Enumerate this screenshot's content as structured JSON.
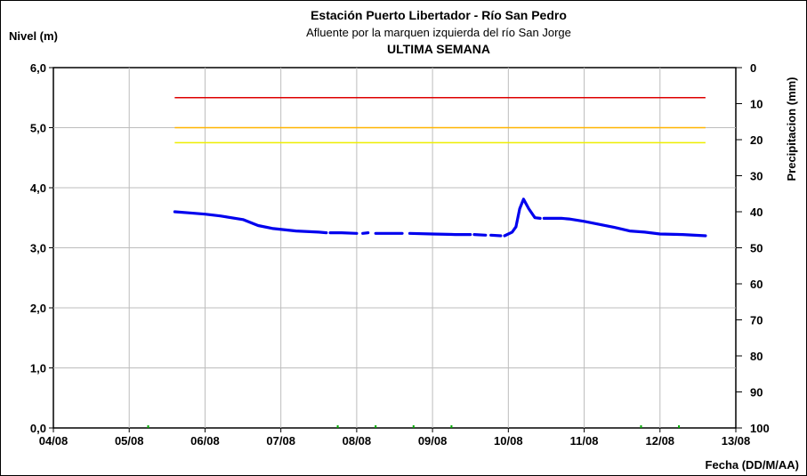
{
  "chart_data": {
    "type": "line",
    "title": "Estación Puerto Libertador - Río San Pedro",
    "subtitle": "Afluente por la marquen izquierda del río San Jorge",
    "subtitle2": "ULTIMA SEMANA",
    "ylabel": "Nivel (m)",
    "y2label": "Precipitacion (mm)",
    "xlabel": "Fecha (DD/M/AA)",
    "xlim": [
      0,
      9
    ],
    "ylim": [
      0,
      6
    ],
    "y2lim": [
      0,
      100
    ],
    "y2_inverted": true,
    "grid": true,
    "x_ticks": [
      "04/08",
      "05/08",
      "06/08",
      "07/08",
      "08/08",
      "09/08",
      "10/08",
      "11/08",
      "12/08",
      "13/08"
    ],
    "y_ticks": [
      "0,0",
      "1,0",
      "2,0",
      "3,0",
      "4,0",
      "5,0",
      "6,0"
    ],
    "y2_ticks": [
      "0",
      "10",
      "20",
      "30",
      "40",
      "50",
      "60",
      "70",
      "80",
      "90",
      "100"
    ],
    "colors": {
      "level": "#0000ee",
      "red": "#dd0000",
      "orange": "#ffb400",
      "yellow": "#eeee00",
      "precip": "#00aa00"
    },
    "thresholds": [
      {
        "color": "red",
        "value": 5.5,
        "x_start": 1.6,
        "x_end": 8.6
      },
      {
        "color": "orange",
        "value": 5.0,
        "x_start": 1.6,
        "x_end": 8.6
      },
      {
        "color": "yellow",
        "value": 4.75,
        "x_start": 1.6,
        "x_end": 8.6
      }
    ],
    "precipitation_marks_x": [
      1.25,
      3.75,
      4.25,
      4.75,
      5.25,
      7.75,
      8.25
    ],
    "series": [
      {
        "segments": [
          [
            [
              1.6,
              3.6
            ],
            [
              1.8,
              3.58
            ],
            [
              2.0,
              3.56
            ],
            [
              2.2,
              3.53
            ],
            [
              2.5,
              3.47
            ],
            [
              2.7,
              3.37
            ],
            [
              2.9,
              3.32
            ],
            [
              3.2,
              3.28
            ],
            [
              3.5,
              3.26
            ],
            [
              3.6,
              3.25
            ]
          ],
          [
            [
              3.65,
              3.25
            ],
            [
              3.8,
              3.25
            ],
            [
              4.0,
              3.24
            ]
          ],
          [
            [
              4.08,
              3.24
            ],
            [
              4.15,
              3.25
            ]
          ],
          [
            [
              4.25,
              3.24
            ],
            [
              4.6,
              3.24
            ]
          ],
          [
            [
              4.7,
              3.24
            ],
            [
              5.0,
              3.23
            ],
            [
              5.3,
              3.22
            ],
            [
              5.5,
              3.22
            ]
          ],
          [
            [
              5.55,
              3.22
            ],
            [
              5.7,
              3.21
            ]
          ],
          [
            [
              5.77,
              3.21
            ],
            [
              5.9,
              3.2
            ]
          ],
          [
            [
              5.95,
              3.2
            ],
            [
              6.05,
              3.26
            ],
            [
              6.1,
              3.35
            ],
            [
              6.15,
              3.65
            ],
            [
              6.2,
              3.81
            ],
            [
              6.27,
              3.65
            ],
            [
              6.35,
              3.5
            ],
            [
              6.42,
              3.49
            ]
          ],
          [
            [
              6.47,
              3.49
            ],
            [
              6.7,
              3.49
            ],
            [
              6.8,
              3.48
            ],
            [
              7.0,
              3.44
            ],
            [
              7.2,
              3.39
            ],
            [
              7.4,
              3.34
            ],
            [
              7.6,
              3.28
            ],
            [
              7.8,
              3.26
            ],
            [
              8.0,
              3.23
            ],
            [
              8.3,
              3.22
            ],
            [
              8.6,
              3.2
            ]
          ]
        ]
      }
    ]
  }
}
